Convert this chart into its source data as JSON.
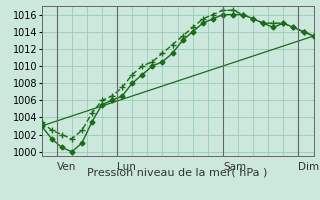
{
  "title": "",
  "xlabel": "Pression niveau de la mer( hPa )",
  "bg_color": "#cce8dc",
  "grid_color": "#99ccb8",
  "line_color": "#1a6b1a",
  "ylim": [
    999.5,
    1017
  ],
  "yticks": [
    1000,
    1002,
    1004,
    1006,
    1008,
    1010,
    1012,
    1014,
    1016
  ],
  "xlim": [
    0,
    108
  ],
  "xtick_positions": [
    6,
    30,
    72,
    102
  ],
  "xtick_labels": [
    "Ven",
    "Lun",
    "Sam",
    "Dim"
  ],
  "vline_positions": [
    6,
    30,
    72,
    102
  ],
  "line1_x": [
    0,
    4,
    8,
    12,
    16,
    20,
    24,
    28,
    32,
    36,
    40,
    44,
    48,
    52,
    56,
    60,
    64,
    68,
    72,
    76,
    80,
    84,
    88,
    92,
    96,
    100,
    104,
    108
  ],
  "line1_y": [
    1003,
    1001.5,
    1000.5,
    1000,
    1001,
    1003.5,
    1005.5,
    1006,
    1006.5,
    1008,
    1009,
    1010,
    1010.5,
    1011.5,
    1013,
    1014,
    1015,
    1015.5,
    1016,
    1016,
    1016,
    1015.5,
    1015,
    1014.5,
    1015,
    1014.5,
    1014,
    1013.5
  ],
  "line2_x": [
    0,
    4,
    8,
    12,
    16,
    20,
    24,
    28,
    32,
    36,
    40,
    44,
    48,
    52,
    56,
    60,
    64,
    68,
    72,
    76,
    80,
    84,
    88,
    92,
    96,
    100,
    104,
    108
  ],
  "line2_y": [
    1003.5,
    1002.5,
    1002,
    1001.5,
    1002.5,
    1004.5,
    1006,
    1006.5,
    1007.5,
    1009,
    1010,
    1010.5,
    1011.5,
    1012.5,
    1013.5,
    1014.5,
    1015.5,
    1016,
    1016.5,
    1016.5,
    1016,
    1015.5,
    1015,
    1015,
    1015,
    1014.5,
    1014,
    1013.5
  ],
  "line3_x": [
    0,
    108
  ],
  "line3_y": [
    1003,
    1013.5
  ],
  "marker_size": 2.5,
  "linewidth": 1.0,
  "font_size_xlabel": 8,
  "font_size_yticks": 7,
  "font_size_xticks": 7.5
}
